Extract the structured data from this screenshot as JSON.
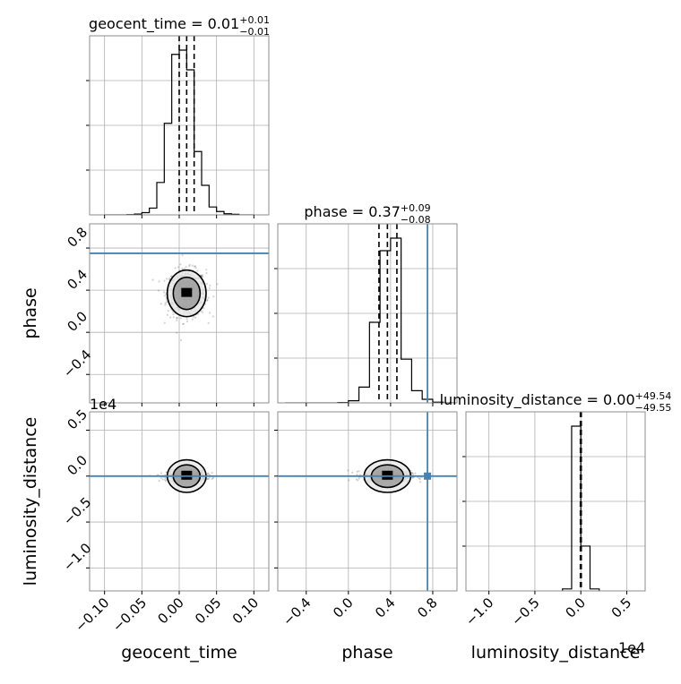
{
  "chart_data": {
    "type": "corner",
    "parameters": [
      "geocent_time",
      "phase",
      "luminosity_distance"
    ],
    "titles": [
      {
        "param": "geocent_time",
        "prefix": "geocent_time = ",
        "median": "0.01",
        "plus": "+0.01",
        "minus": "−0.01"
      },
      {
        "param": "phase",
        "prefix": "phase = ",
        "median": "0.37",
        "plus": "+0.09",
        "minus": "−0.08"
      },
      {
        "param": "luminosity_distance",
        "prefix": "luminosity_distance = ",
        "median": "0.00",
        "plus": "+49.54",
        "minus": "−49.55"
      }
    ],
    "axis_labels": [
      "geocent_time",
      "phase",
      "luminosity_distance"
    ],
    "ranges": {
      "geocent_time": [
        -0.12,
        0.12
      ],
      "phase": [
        -0.67,
        1.03
      ],
      "luminosity_distance": [
        -12500,
        7000
      ]
    },
    "ticks": {
      "geocent_time": {
        "values": [
          -0.1,
          -0.05,
          0.0,
          0.05,
          0.1
        ],
        "labels": [
          "−0.10",
          "−0.05",
          "0.00",
          "0.05",
          "0.10"
        ]
      },
      "phase": {
        "values": [
          -0.4,
          0.0,
          0.4,
          0.8
        ],
        "labels": [
          "−0.4",
          "0.0",
          "0.4",
          "0.8"
        ]
      },
      "luminosity_distance": {
        "values": [
          -10000,
          -5000,
          0,
          5000
        ],
        "labels": [
          "−1.0",
          "−0.5",
          "0.0",
          "0.5"
        ]
      }
    },
    "offset_text": "1e4",
    "injection": {
      "geocent_time": 0.0,
      "phase": 0.75,
      "luminosity_distance": 0
    },
    "quantiles": {
      "geocent_time": [
        0.0,
        0.01,
        0.02
      ],
      "phase": [
        0.29,
        0.37,
        0.46
      ],
      "luminosity_distance": [
        -49.55,
        0.0,
        49.54
      ]
    },
    "histograms": {
      "geocent_time": {
        "edges": [
          -0.1,
          -0.09,
          -0.08,
          -0.07,
          -0.06,
          -0.05,
          -0.04,
          -0.03,
          -0.02,
          -0.01,
          0.0,
          0.01,
          0.02,
          0.03,
          0.04,
          0.05,
          0.06,
          0.07,
          0.08,
          0.09,
          0.1
        ],
        "counts": [
          0,
          0,
          0,
          1,
          3,
          8,
          24,
          115,
          325,
          570,
          585,
          515,
          225,
          105,
          28,
          12,
          4,
          2,
          0,
          0
        ]
      },
      "phase": {
        "edges": [
          -0.6,
          -0.5,
          -0.4,
          -0.3,
          -0.2,
          -0.1,
          0.0,
          0.1,
          0.2,
          0.3,
          0.4,
          0.5,
          0.6,
          0.7,
          0.8,
          0.9,
          1.0
        ],
        "counts": [
          0,
          0,
          0,
          0,
          0,
          1,
          6,
          44,
          225,
          425,
          460,
          122,
          34,
          10,
          2,
          0
        ]
      },
      "luminosity_distance": {
        "edges": [
          -2000,
          -1000,
          0,
          1000,
          2000
        ],
        "counts": [
          3,
          250,
          68,
          3
        ]
      }
    },
    "grid": true,
    "colors": {
      "truth": "#4682b4",
      "contour": "#000000",
      "points": "#555555"
    }
  }
}
